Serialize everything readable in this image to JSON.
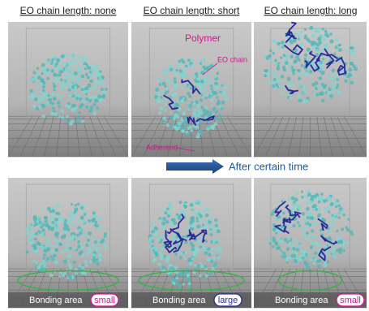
{
  "headers": [
    "EO chain length: none",
    "EO chain length: short",
    "EO chain length: long"
  ],
  "annotations": {
    "polymer": "Polymer",
    "eo_chain": "EO chain",
    "adherend": "Adherend"
  },
  "transition": "After certain time",
  "bonding": {
    "label": "Bonding area",
    "sizes": [
      "small",
      "large",
      "small"
    ]
  }
}
